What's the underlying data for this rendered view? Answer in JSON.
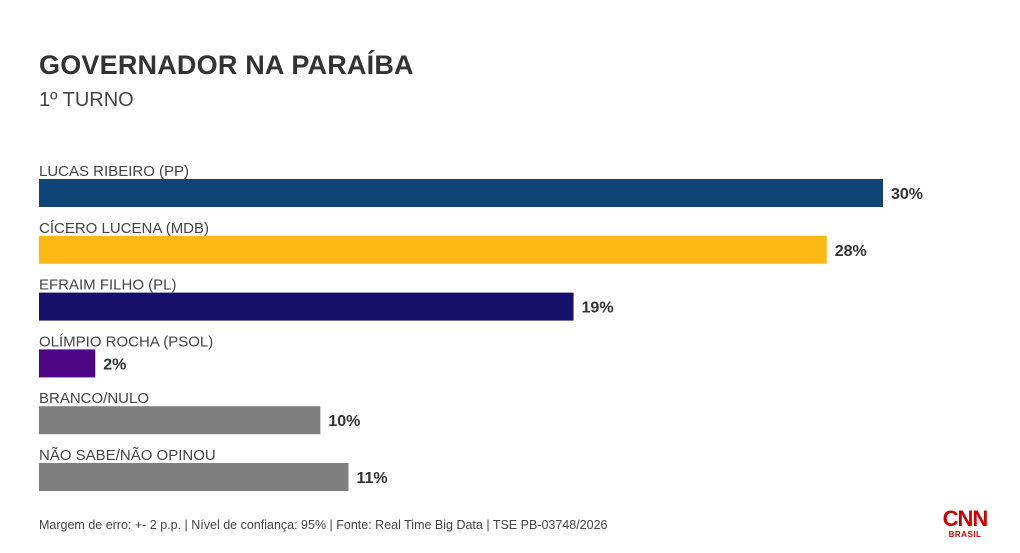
{
  "header": {
    "title": "GOVERNADOR NA PARAÍBA",
    "subtitle": "1º TURNO"
  },
  "chart_data": {
    "type": "bar",
    "orientation": "horizontal",
    "categories": [
      "LUCAS RIBEIRO (PP)",
      "CÍCERO LUCENA (MDB)",
      "EFRAIM FILHO (PL)",
      "OLÍMPIO ROCHA (PSOL)",
      "BRANCO/NULO",
      "NÃO SABE/NÃO OPINOU"
    ],
    "values": [
      30,
      28,
      19,
      2,
      10,
      11
    ],
    "value_labels": [
      "30%",
      "28%",
      "19%",
      "2%",
      "10%",
      "11%"
    ],
    "colors": [
      "#0e4476",
      "#fdb813",
      "#17106b",
      "#4f0684",
      "#7f7f7f",
      "#7f7f7f"
    ],
    "title": "GOVERNADOR NA PARAÍBA",
    "subtitle": "1º TURNO",
    "xlim": [
      0,
      30
    ],
    "grid": false
  },
  "footer": {
    "note": "Margem de erro: +- 2 p.p. | Nível de confiança: 95% | Fonte: Real Time Big Data | TSE PB-03748/2026"
  },
  "logo": {
    "main": "CNN",
    "sub": "BRASIL",
    "color": "#cc0000"
  }
}
